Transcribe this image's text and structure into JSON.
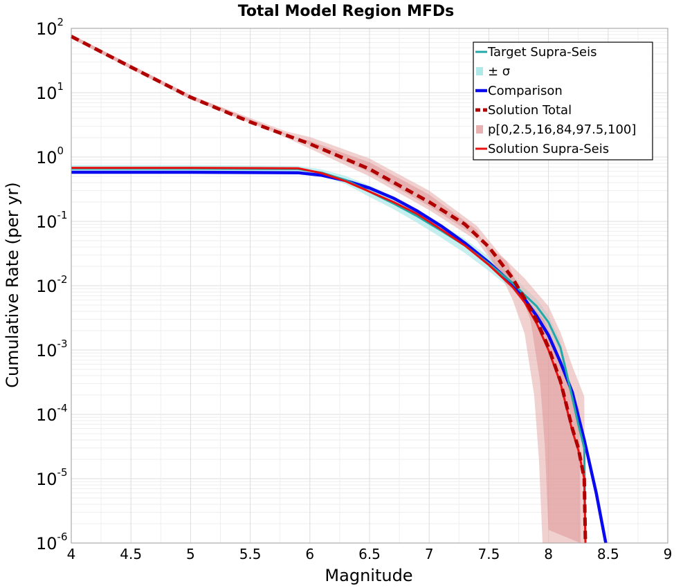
{
  "chart_data": {
    "type": "line",
    "title": "Total Model Region MFDs",
    "xlabel": "Magnitude",
    "ylabel": "Cumulative Rate (per yr)",
    "xlim": [
      4,
      9
    ],
    "ylim": [
      1e-06,
      100
    ],
    "yscale": "log",
    "grid": true,
    "legend_position": "top-right",
    "x_ticks": [
      "4",
      "4.5",
      "5",
      "5.5",
      "6",
      "6.5",
      "7",
      "7.5",
      "8",
      "8.5",
      "9"
    ],
    "y_ticks": [
      {
        "base": "10",
        "exp": "-6",
        "value": 1e-06
      },
      {
        "base": "10",
        "exp": "-5",
        "value": 1e-05
      },
      {
        "base": "10",
        "exp": "-4",
        "value": 0.0001
      },
      {
        "base": "10",
        "exp": "-3",
        "value": 0.001
      },
      {
        "base": "10",
        "exp": "-2",
        "value": 0.01
      },
      {
        "base": "10",
        "exp": "-1",
        "value": 0.1
      },
      {
        "base": "10",
        "exp": "0",
        "value": 1
      },
      {
        "base": "10",
        "exp": "1",
        "value": 10
      },
      {
        "base": "10",
        "exp": "2",
        "value": 100
      }
    ],
    "series": [
      {
        "name": "Target Supra-Seis",
        "color": "#20a8a8",
        "kind": "line",
        "points": [
          [
            4,
            0.66
          ],
          [
            5,
            0.66
          ],
          [
            5.9,
            0.65
          ],
          [
            6.1,
            0.57
          ],
          [
            6.3,
            0.44
          ],
          [
            6.5,
            0.29
          ],
          [
            6.7,
            0.19
          ],
          [
            6.9,
            0.12
          ],
          [
            7.1,
            0.072
          ],
          [
            7.3,
            0.042
          ],
          [
            7.5,
            0.022
          ],
          [
            7.7,
            0.011
          ],
          [
            7.8,
            0.0072
          ],
          [
            7.9,
            0.0048
          ],
          [
            8.0,
            0.0027
          ],
          [
            8.1,
            0.0011
          ],
          [
            8.15,
            0.00045
          ],
          [
            8.2,
            0.00018
          ],
          [
            8.25,
            7e-05
          ],
          [
            8.3,
            3e-05
          ],
          [
            8.31,
            1e-06
          ]
        ]
      },
      {
        "name": "± σ",
        "color": "#aee8e8",
        "kind": "band",
        "lower": [
          [
            4,
            0.6
          ],
          [
            5,
            0.6
          ],
          [
            5.9,
            0.59
          ],
          [
            6.1,
            0.51
          ],
          [
            6.3,
            0.38
          ],
          [
            6.5,
            0.24
          ],
          [
            6.7,
            0.155
          ],
          [
            6.9,
            0.095
          ],
          [
            7.1,
            0.056
          ],
          [
            7.3,
            0.032
          ],
          [
            7.5,
            0.017
          ],
          [
            7.7,
            0.0085
          ],
          [
            7.8,
            0.0055
          ],
          [
            7.9,
            0.0037
          ],
          [
            8.0,
            0.0021
          ],
          [
            8.1,
            0.00085
          ],
          [
            8.2,
            0.00014
          ],
          [
            8.3,
            2.3e-05
          ],
          [
            8.31,
            1e-06
          ]
        ],
        "upper": [
          [
            4,
            0.75
          ],
          [
            5,
            0.75
          ],
          [
            5.9,
            0.73
          ],
          [
            6.1,
            0.64
          ],
          [
            6.3,
            0.51
          ],
          [
            6.5,
            0.36
          ],
          [
            6.7,
            0.24
          ],
          [
            6.9,
            0.15
          ],
          [
            7.1,
            0.09
          ],
          [
            7.3,
            0.053
          ],
          [
            7.5,
            0.028
          ],
          [
            7.7,
            0.014
          ],
          [
            7.8,
            0.0092
          ],
          [
            7.9,
            0.0062
          ],
          [
            8.0,
            0.0035
          ],
          [
            8.1,
            0.0014
          ],
          [
            8.2,
            0.00023
          ],
          [
            8.3,
            3.8e-05
          ],
          [
            8.31,
            1e-06
          ]
        ]
      },
      {
        "name": "Comparison",
        "color": "#0a0af0",
        "kind": "line",
        "points": [
          [
            4,
            0.58
          ],
          [
            5,
            0.58
          ],
          [
            5.9,
            0.57
          ],
          [
            6.1,
            0.52
          ],
          [
            6.3,
            0.43
          ],
          [
            6.5,
            0.33
          ],
          [
            6.7,
            0.23
          ],
          [
            6.9,
            0.145
          ],
          [
            7.1,
            0.085
          ],
          [
            7.3,
            0.046
          ],
          [
            7.5,
            0.023
          ],
          [
            7.7,
            0.0105
          ],
          [
            7.8,
            0.0062
          ],
          [
            7.9,
            0.0034
          ],
          [
            8.0,
            0.0017
          ],
          [
            8.1,
            0.00065
          ],
          [
            8.2,
            0.00022
          ],
          [
            8.3,
            4e-05
          ],
          [
            8.4,
            6e-06
          ],
          [
            8.48,
            1e-06
          ]
        ]
      },
      {
        "name": "Solution Total",
        "color": "#b00000",
        "kind": "dashed",
        "points": [
          [
            4,
            75
          ],
          [
            4.5,
            25
          ],
          [
            5,
            8.5
          ],
          [
            5.5,
            3.5
          ],
          [
            6,
            1.6
          ],
          [
            6.5,
            0.65
          ],
          [
            7,
            0.2
          ],
          [
            7.3,
            0.09
          ],
          [
            7.5,
            0.04
          ],
          [
            7.7,
            0.013
          ],
          [
            7.8,
            0.0063
          ],
          [
            7.9,
            0.0029
          ],
          [
            8.0,
            0.0011
          ],
          [
            8.1,
            0.00033
          ],
          [
            8.2,
            6e-05
          ],
          [
            8.25,
            3e-05
          ],
          [
            8.3,
            1e-05
          ],
          [
            8.31,
            1e-06
          ]
        ]
      },
      {
        "name": "p[0,2.5,16,84,97.5,100]",
        "color": "#e8b0b0",
        "kind": "band",
        "lower": [
          [
            4,
            70
          ],
          [
            5,
            8
          ],
          [
            5.8,
            2.0
          ],
          [
            6.0,
            1.35
          ],
          [
            6.5,
            0.5
          ],
          [
            7,
            0.15
          ],
          [
            7.4,
            0.05
          ],
          [
            7.6,
            0.015
          ],
          [
            7.7,
            0.006
          ],
          [
            7.8,
            0.0018
          ],
          [
            7.88,
            0.0002
          ],
          [
            7.92,
            2e-05
          ],
          [
            7.95,
            1e-06
          ]
        ],
        "upper": [
          [
            4,
            80
          ],
          [
            5,
            9
          ],
          [
            5.8,
            2.5
          ],
          [
            6.0,
            2.05
          ],
          [
            6.5,
            0.95
          ],
          [
            7,
            0.3
          ],
          [
            7.4,
            0.085
          ],
          [
            7.6,
            0.03
          ],
          [
            7.8,
            0.013
          ],
          [
            8.0,
            0.0048
          ],
          [
            8.1,
            0.0019
          ],
          [
            8.2,
            0.00056
          ],
          [
            8.3,
            0.00019
          ],
          [
            8.31,
            1e-06
          ]
        ]
      },
      {
        "name": "Solution Supra-Seis",
        "color": "#e81010",
        "kind": "line",
        "points": [
          [
            4,
            0.68
          ],
          [
            5,
            0.68
          ],
          [
            5.9,
            0.67
          ],
          [
            6.1,
            0.56
          ],
          [
            6.3,
            0.42
          ],
          [
            6.5,
            0.29
          ],
          [
            6.7,
            0.2
          ],
          [
            6.9,
            0.13
          ],
          [
            7.1,
            0.075
          ],
          [
            7.3,
            0.042
          ],
          [
            7.5,
            0.021
          ],
          [
            7.7,
            0.0095
          ],
          [
            7.8,
            0.0055
          ],
          [
            7.9,
            0.0026
          ],
          [
            8.0,
            0.001
          ],
          [
            8.1,
            0.00031
          ],
          [
            8.2,
            5.5e-05
          ],
          [
            8.25,
            2.8e-05
          ],
          [
            8.3,
            1e-05
          ],
          [
            8.31,
            1e-06
          ]
        ]
      }
    ]
  }
}
